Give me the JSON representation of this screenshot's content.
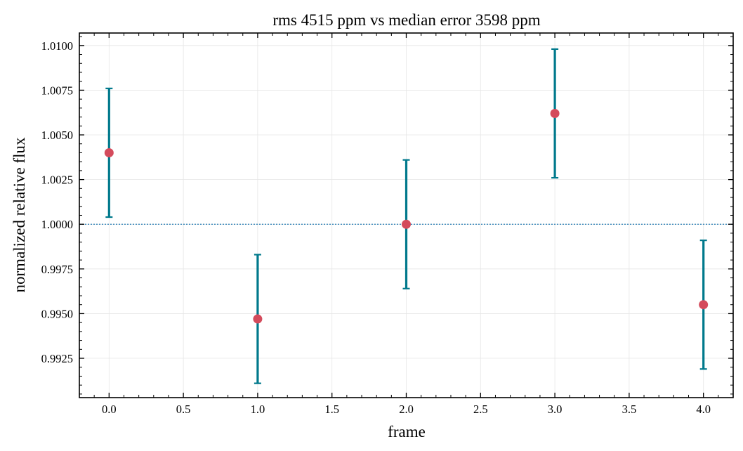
{
  "chart_data": {
    "type": "scatter",
    "title": "rms 4515 ppm vs median error 3598 ppm",
    "xlabel": "frame",
    "ylabel": "normalized relative flux",
    "xlim": [
      -0.2,
      4.2
    ],
    "ylim": [
      0.9903,
      1.0107
    ],
    "x_ticks": [
      0.0,
      0.5,
      1.0,
      1.5,
      2.0,
      2.5,
      3.0,
      3.5,
      4.0
    ],
    "x_tick_labels": [
      "0.0",
      "0.5",
      "1.0",
      "1.5",
      "2.0",
      "2.5",
      "3.0",
      "3.5",
      "4.0"
    ],
    "y_ticks": [
      0.9925,
      0.995,
      0.9975,
      1.0,
      1.0025,
      1.005,
      1.0075,
      1.01
    ],
    "y_tick_labels": [
      "0.9925",
      "0.9950",
      "0.9975",
      "1.0000",
      "1.0025",
      "1.0050",
      "1.0075",
      "1.0100"
    ],
    "grid": true,
    "reference_line": 1.0,
    "points": [
      {
        "x": 0,
        "y": 1.004,
        "err_low": 1.0004,
        "err_high": 1.0076
      },
      {
        "x": 1,
        "y": 0.9947,
        "err_low": 0.9911,
        "err_high": 0.9983
      },
      {
        "x": 2,
        "y": 1.0,
        "err_low": 0.9964,
        "err_high": 1.0036
      },
      {
        "x": 3,
        "y": 1.0062,
        "err_low": 1.0026,
        "err_high": 1.0098
      },
      {
        "x": 4,
        "y": 0.9955,
        "err_low": 0.9919,
        "err_high": 0.9991
      }
    ],
    "colors": {
      "marker": "#d44b5c",
      "errorbar": "#00798c",
      "reference_line": "#2a7fb5",
      "grid": "#e6e6e6",
      "axes": "#000000"
    }
  }
}
